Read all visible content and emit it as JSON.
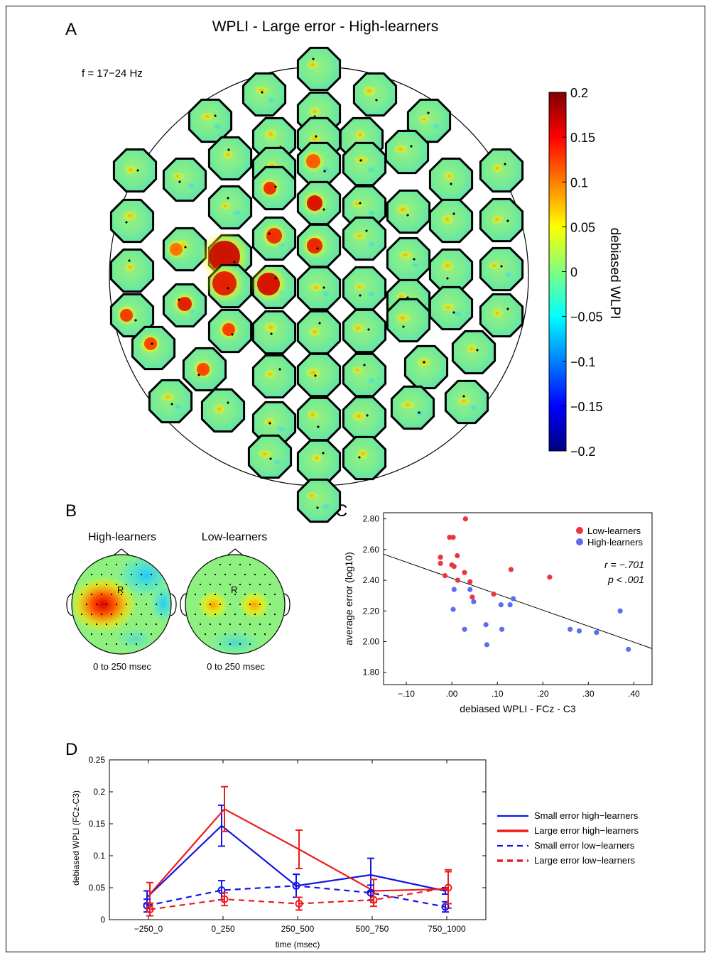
{
  "panel_letters": [
    "A",
    "B",
    "C",
    "D"
  ],
  "panelA": {
    "title": "WPLI - Large error - High-learners",
    "freq_label": "f = 17−24 Hz",
    "colorbar_ticks": [
      "0.2",
      "0.15",
      "0.1",
      "0.05",
      "0",
      "−0.05",
      "−0.1",
      "−0.15",
      "−0.2"
    ],
    "colorbar_label": "debiased WLPI",
    "colormap": [
      "#00007f",
      "#0000ff",
      "#007fff",
      "#00ffff",
      "#7fff7f",
      "#ffff00",
      "#ff7f00",
      "#ff0000",
      "#7f0000"
    ]
  },
  "panelB": {
    "maps": [
      {
        "title": "High-learners",
        "marker": "R",
        "caption": "0 to 250 msec"
      },
      {
        "title": "Low-learners",
        "marker": "R",
        "caption": "0 to 250 msec"
      }
    ]
  },
  "chart_data": [
    {
      "type": "scatter",
      "panel": "C",
      "title": "",
      "xlabel": "debiased WPLI - FCz - C3",
      "ylabel": "average error (log10)",
      "xlim": [
        -0.15,
        0.44
      ],
      "ylim": [
        1.72,
        2.84
      ],
      "xticks": [
        -0.1,
        0.0,
        0.1,
        0.2,
        0.3,
        0.4
      ],
      "xtick_labels": [
        "−.10",
        ".00",
        ".10",
        ".20",
        ".30",
        ".40"
      ],
      "yticks": [
        1.8,
        2.0,
        2.2,
        2.4,
        2.6,
        2.8
      ],
      "ytick_labels": [
        "1.80",
        "2.00",
        "2.20",
        "2.40",
        "2.60",
        "2.80"
      ],
      "annotations": [
        "r = −.701",
        "p < .001"
      ],
      "legend_position": "top-right",
      "series": [
        {
          "name": "Low-learners",
          "color": "#e8363e",
          "points": [
            [
              -0.025,
              2.55
            ],
            [
              -0.025,
              2.51
            ],
            [
              -0.015,
              2.43
            ],
            [
              -0.005,
              2.68
            ],
            [
              0.003,
              2.68
            ],
            [
              0.0,
              2.5
            ],
            [
              0.005,
              2.49
            ],
            [
              0.012,
              2.56
            ],
            [
              0.013,
              2.4
            ],
            [
              0.028,
              2.45
            ],
            [
              0.03,
              2.8
            ],
            [
              0.04,
              2.39
            ],
            [
              0.045,
              2.29
            ],
            [
              0.092,
              2.31
            ],
            [
              0.13,
              2.47
            ],
            [
              0.215,
              2.42
            ]
          ]
        },
        {
          "name": "High-learners",
          "color": "#5b6ef0",
          "points": [
            [
              0.005,
              2.34
            ],
            [
              0.003,
              2.21
            ],
            [
              0.028,
              2.08
            ],
            [
              0.04,
              2.34
            ],
            [
              0.048,
              2.26
            ],
            [
              0.075,
              2.11
            ],
            [
              0.077,
              1.98
            ],
            [
              0.108,
              2.24
            ],
            [
              0.11,
              2.08
            ],
            [
              0.128,
              2.24
            ],
            [
              0.135,
              2.28
            ],
            [
              0.26,
              2.08
            ],
            [
              0.28,
              2.07
            ],
            [
              0.318,
              2.06
            ],
            [
              0.37,
              2.2
            ],
            [
              0.388,
              1.95
            ]
          ]
        }
      ],
      "fit_line": {
        "x": [
          -0.15,
          0.44
        ],
        "y": [
          2.57,
          1.955
        ]
      }
    },
    {
      "type": "line",
      "panel": "D",
      "title": "",
      "xlabel": "time (msec)",
      "ylabel": "debiased WPLI (FCz-C3)",
      "categories": [
        "−250_0",
        "0_250",
        "250_500",
        "500_750",
        "750_1000"
      ],
      "ylim": [
        0,
        0.25
      ],
      "yticks": [
        0,
        0.05,
        0.1,
        0.15,
        0.2,
        0.25
      ],
      "ytick_labels": [
        "0",
        "0.05",
        "0.1",
        "0.15",
        "0.2",
        "0.25"
      ],
      "legend_position": "right",
      "series": [
        {
          "name": "Small error high−learners",
          "color": "#1414e6",
          "dash": false,
          "markers": false,
          "values": [
            0.035,
            0.147,
            0.053,
            0.07,
            0.045
          ],
          "errors": [
            0.01,
            0.032,
            0.018,
            0.026,
            0.005
          ]
        },
        {
          "name": "Large error high−learners",
          "color": "#ee1c1c",
          "dash": false,
          "markers": false,
          "values": [
            0.04,
            0.173,
            0.11,
            0.045,
            0.048
          ],
          "errors": [
            0.018,
            0.035,
            0.03,
            0.018,
            0.03
          ]
        },
        {
          "name": "Small error low−learners",
          "color": "#1414e6",
          "dash": true,
          "markers": true,
          "values": [
            0.022,
            0.046,
            0.053,
            0.042,
            0.02
          ],
          "errors": [
            0.01,
            0.015,
            0.018,
            0.012,
            0.008
          ]
        },
        {
          "name": "Large error low−learners",
          "color": "#ee1c1c",
          "dash": true,
          "markers": true,
          "values": [
            0.016,
            0.032,
            0.025,
            0.031,
            0.05
          ],
          "errors": [
            0.01,
            0.01,
            0.01,
            0.01,
            0.025
          ]
        }
      ]
    }
  ]
}
